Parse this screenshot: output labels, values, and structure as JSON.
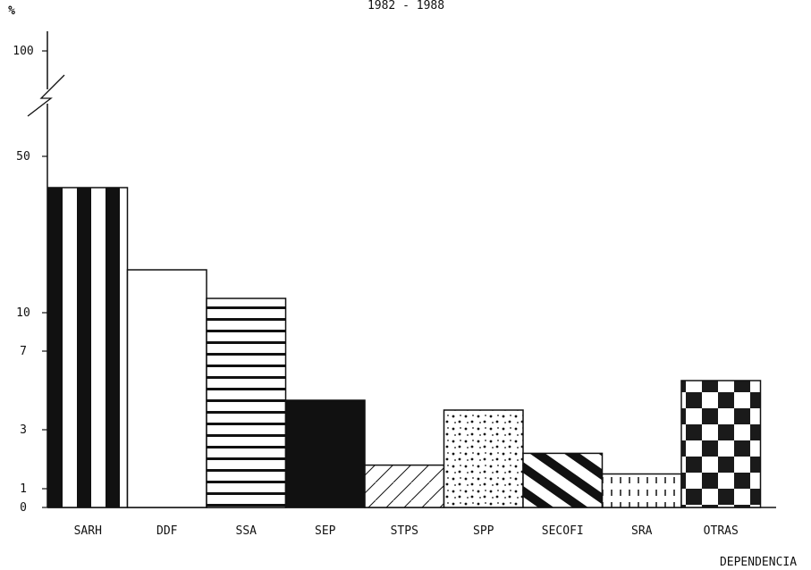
{
  "chart_data": {
    "type": "bar",
    "title": "1982 - 1988",
    "ylabel": "%",
    "xlabel": "DEPENDENCIA",
    "categories": [
      "SARH",
      "DDF",
      "SSA",
      "SEP",
      "STPS",
      "SPP",
      "SECOFI",
      "SRA",
      "OTRAS"
    ],
    "values": [
      40,
      19,
      13,
      4.5,
      1.8,
      4,
      2.2,
      1.5,
      5.5
    ],
    "y_ticks": [
      "0",
      "1",
      "3",
      "7",
      "10",
      "50",
      "100"
    ],
    "y_tick_values": [
      0,
      1,
      3,
      7,
      10,
      50,
      100
    ],
    "ylim": [
      0,
      100
    ],
    "axis_break": "between 50 and 100",
    "grid": false,
    "patterns": [
      "vertical-stripes",
      "blank",
      "horizontal-stripes",
      "solid-black",
      "diagonal-lines",
      "dots",
      "thick-diagonal-stripes",
      "vertical-dashes",
      "checkerboard"
    ]
  }
}
